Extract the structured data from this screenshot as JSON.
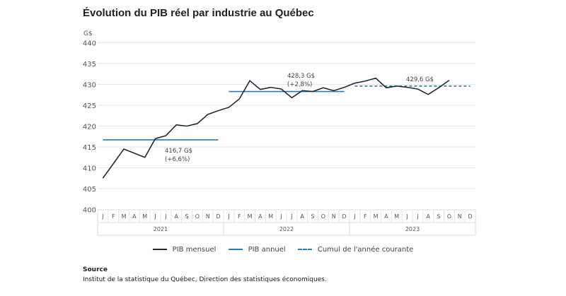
{
  "chart_data": {
    "type": "line",
    "title": "Évolution du PIB réel par industrie au Québec",
    "ylabel": "G$",
    "ylim": [
      400,
      440
    ],
    "yticks": [
      400,
      405,
      410,
      415,
      420,
      425,
      430,
      435,
      440
    ],
    "grid": true,
    "months": [
      "J",
      "F",
      "M",
      "A",
      "M",
      "J",
      "J",
      "A",
      "S",
      "O",
      "N",
      "D"
    ],
    "years": [
      "2021",
      "2022",
      "2023"
    ],
    "series": [
      {
        "name": "PIB mensuel",
        "color": "#1f2a36",
        "style": "solid",
        "values": [
          407.5,
          411,
          414.5,
          413.5,
          412.5,
          417,
          417.7,
          420.3,
          420,
          420.6,
          422.8,
          423.7,
          424.5,
          426.5,
          430.9,
          428.8,
          429.3,
          428.9,
          426.8,
          428.5,
          428.3,
          429.2,
          428.5,
          429.3,
          430.3,
          430.8,
          431.5,
          429.2,
          429.6,
          429.3,
          428.9,
          427.6,
          429.2,
          431.0
        ]
      },
      {
        "name": "PIB annuel",
        "color": "#2f78a8",
        "style": "solid",
        "segments": [
          {
            "year": "2021",
            "value": 416.7
          },
          {
            "year": "2022",
            "value": 428.3
          }
        ]
      },
      {
        "name": "Cumul de l'année courante",
        "color": "#2f78a8",
        "style": "dashed",
        "segments": [
          {
            "year": "2023",
            "value": 429.6
          }
        ]
      }
    ],
    "annotations": [
      {
        "year": "2021",
        "lines": [
          "416,7 G$",
          "(+6,6%)"
        ]
      },
      {
        "year": "2022",
        "lines": [
          "428,3 G$",
          "(+2,8%)"
        ]
      },
      {
        "year": "2023",
        "lines": [
          "429,6 G$"
        ]
      }
    ],
    "legend_position": "bottom"
  },
  "source": {
    "heading": "Source",
    "text": "Institut de la statistique du Québec, Direction des statistiques économiques."
  }
}
